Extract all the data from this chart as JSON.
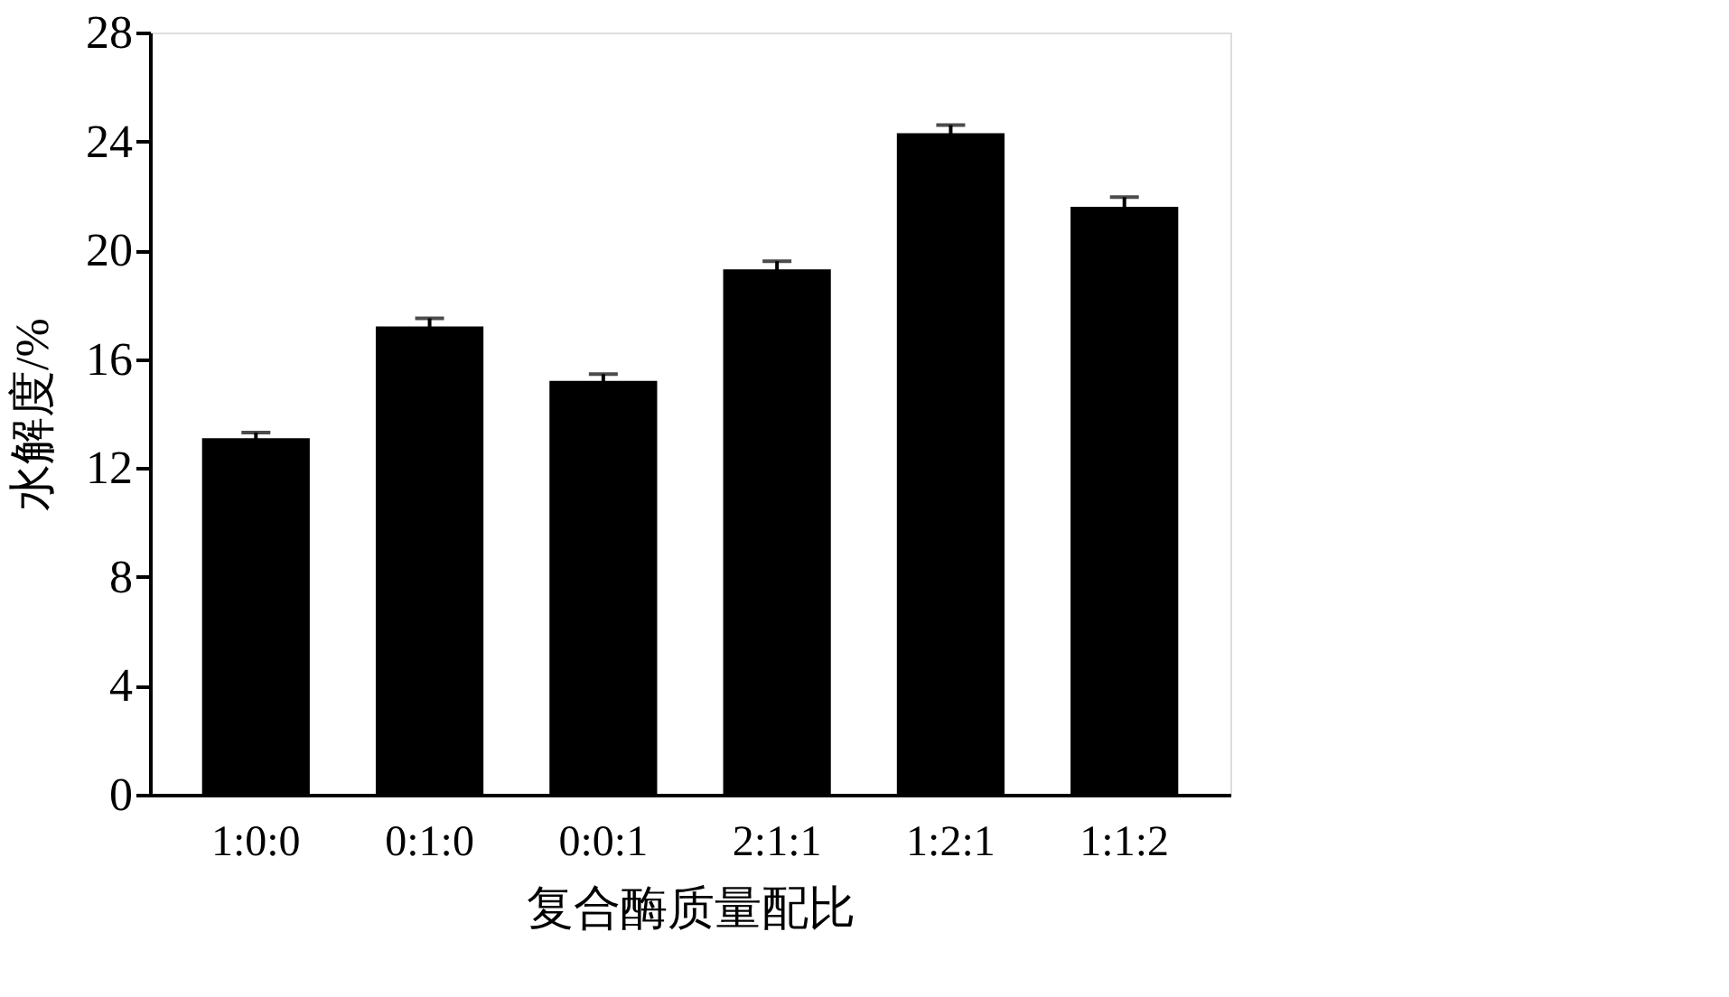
{
  "chart_data": {
    "type": "bar",
    "xlabel": "复合酶质量配比",
    "ylabel": "水解度/%",
    "categories": [
      "1:0:0",
      "0:1:0",
      "0:0:1",
      "2:1:1",
      "1:2:1",
      "1:1:2"
    ],
    "values": [
      13.1,
      17.2,
      15.2,
      19.3,
      24.3,
      21.6
    ],
    "errors": [
      0.2,
      0.3,
      0.25,
      0.3,
      0.3,
      0.35
    ],
    "color": "#000000",
    "ylim": [
      0,
      28
    ],
    "yticks": [
      0,
      4,
      8,
      12,
      16,
      20,
      24,
      28
    ],
    "grid": false
  }
}
